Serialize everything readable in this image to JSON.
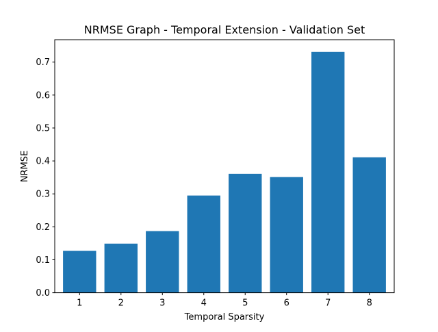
{
  "chart_data": {
    "type": "bar",
    "title": "NRMSE Graph - Temporal Extension - Validation Set",
    "xlabel": "Temporal Sparsity",
    "ylabel": "NRMSE",
    "categories": [
      "1",
      "2",
      "3",
      "4",
      "5",
      "6",
      "7",
      "8"
    ],
    "values": [
      0.127,
      0.149,
      0.187,
      0.295,
      0.361,
      0.351,
      0.731,
      0.411
    ],
    "ylim": [
      0,
      0.768
    ],
    "yticks": [
      "0.0",
      "0.1",
      "0.2",
      "0.3",
      "0.4",
      "0.5",
      "0.6",
      "0.7"
    ],
    "bar_color": "#1f77b4",
    "grid": false
  }
}
